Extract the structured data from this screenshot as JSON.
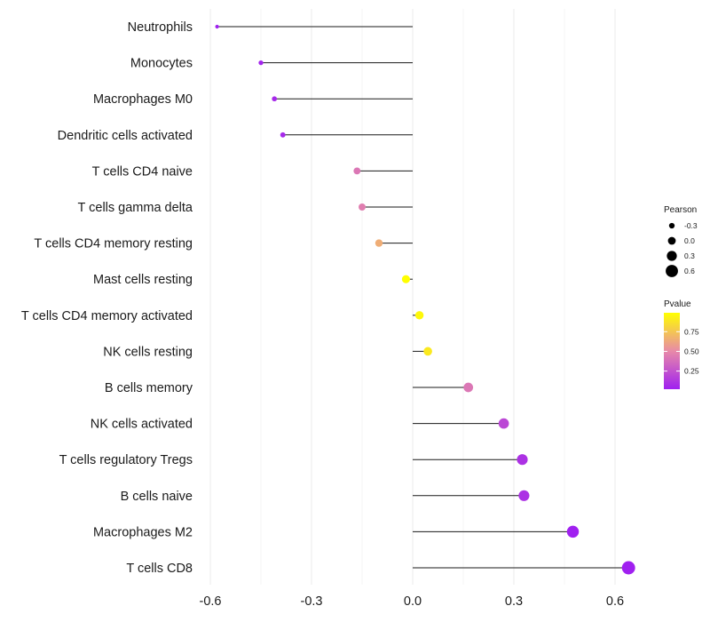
{
  "chart_data": {
    "type": "lollipop",
    "categories": [
      "Neutrophils",
      "Monocytes",
      "Macrophages M0",
      "Dendritic cells activated",
      "T cells CD4 naive",
      "T cells gamma delta",
      "T cells CD4 memory resting",
      "Mast cells resting",
      "T cells CD4 memory activated",
      "NK cells resting",
      "B cells memory",
      "NK cells activated",
      "T cells regulatory  Tregs ",
      "B cells naive",
      "Macrophages M2",
      "T cells CD8"
    ],
    "values": [
      -0.58,
      -0.45,
      -0.41,
      -0.385,
      -0.165,
      -0.15,
      -0.1,
      -0.02,
      0.02,
      0.045,
      0.165,
      0.27,
      0.325,
      0.33,
      0.475,
      0.64
    ],
    "pvalues": [
      0.02,
      0.04,
      0.06,
      0.06,
      0.42,
      0.45,
      0.65,
      0.99,
      0.96,
      0.9,
      0.42,
      0.2,
      0.1,
      0.1,
      0.02,
      0.02
    ],
    "xlim": [
      -0.6,
      0.65
    ],
    "x_ticks": [
      -0.6,
      -0.3,
      0.0,
      0.3,
      0.6
    ],
    "x_tick_labels": [
      "-0.6",
      "-0.3",
      "0.0",
      "0.3",
      "0.6"
    ],
    "xlabel": "",
    "ylabel": "",
    "size_legend": {
      "title": "Pearson",
      "entries": [
        {
          "label": "-0.3",
          "value": -0.3
        },
        {
          "label": "0.0",
          "value": 0.0
        },
        {
          "label": "0.3",
          "value": 0.3
        },
        {
          "label": "0.6",
          "value": 0.6
        }
      ]
    },
    "color_legend": {
      "title": "Pvalue",
      "ticks": [
        {
          "label": "0.75",
          "value": 0.75
        },
        {
          "label": "0.50",
          "value": 0.5
        },
        {
          "label": "0.25",
          "value": 0.25
        }
      ],
      "range": [
        0.02,
        0.99
      ],
      "colors": [
        "#a020f0",
        "#e88aa8",
        "#ffff00"
      ]
    },
    "colors": {
      "stem": "#1a1a1a",
      "grid": "#ebebeb",
      "text": "#1a1a1a"
    }
  }
}
